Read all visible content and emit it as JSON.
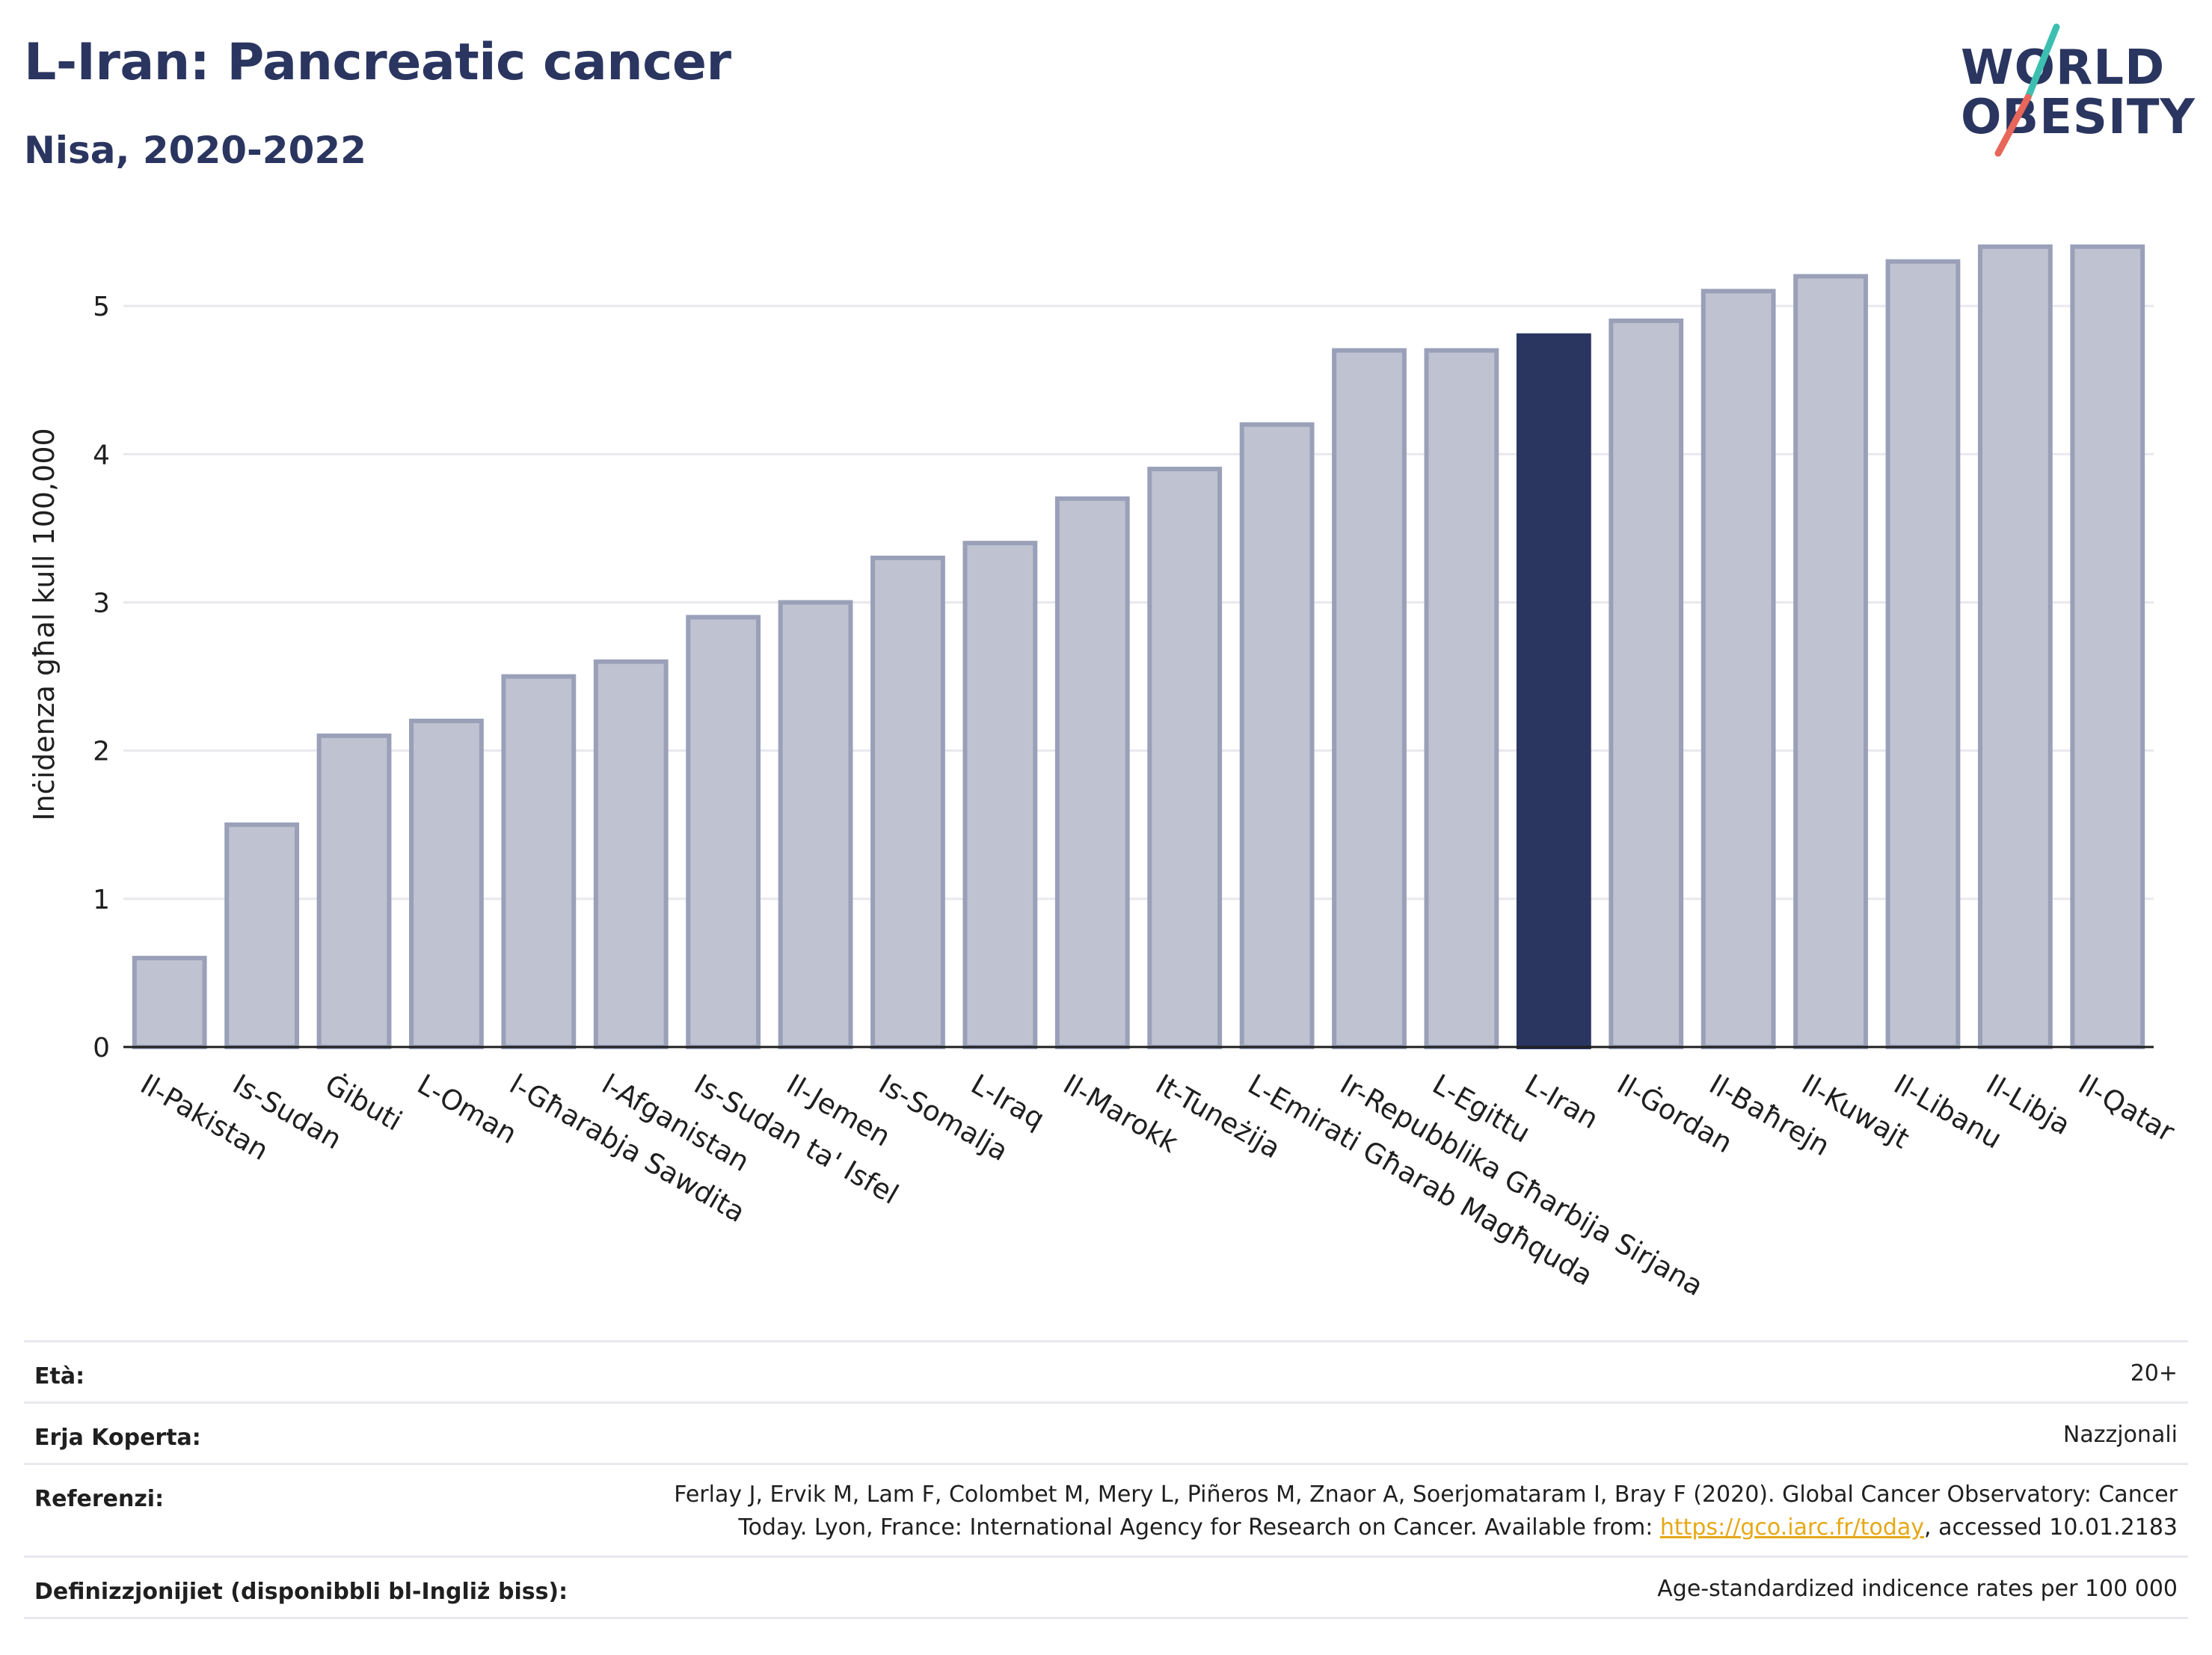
{
  "header": {
    "title": "L-Iran: Pancreatic cancer",
    "subtitle": "Nisa, 2020-2022"
  },
  "logo": {
    "line1": "WORLD",
    "line2": "OBESITY",
    "slash_colors": [
      "#3cbfb0",
      "#e8665a"
    ]
  },
  "chart_data": {
    "type": "bar",
    "title": "L-Iran: Pancreatic cancer",
    "subtitle": "Nisa, 2020-2022",
    "ylabel": "Inċidenza għal kull 100,000",
    "xlabel": "",
    "ylim": [
      0,
      5.5
    ],
    "yticks": [
      0,
      1,
      2,
      3,
      4,
      5
    ],
    "grid": true,
    "highlight": "L-Iran",
    "colors": {
      "bar": "#bfc2d0",
      "bar_border": "#9aa0b8",
      "highlight": "#2a3560",
      "grid": "#e8e8ee"
    },
    "categories": [
      "Il-Pakistan",
      "Is-Sudan",
      "Ġibuti",
      "L-Oman",
      "l-Għarabja Sawdita",
      "l-Afganistan",
      "Is-Sudan ta' Isfel",
      "Il-Jemen",
      "Is-Somalja",
      "L-Iraq",
      "Il-Marokk",
      "It-Tuneżija",
      "L-Emirati Għarab Magħquda",
      "Ir-Repubblika Għarbija Sirjana",
      "L-Egittu",
      "L-Iran",
      "Il-Ġordan",
      "Il-Baħrejn",
      "Il-Kuwajt",
      "Il-Libanu",
      "Il-Libja",
      "Il-Qatar"
    ],
    "values": [
      0.6,
      1.5,
      2.1,
      2.2,
      2.5,
      2.6,
      2.9,
      3.0,
      3.3,
      3.4,
      3.7,
      3.9,
      4.2,
      4.7,
      4.7,
      4.8,
      4.9,
      5.1,
      5.2,
      5.3,
      5.4,
      5.4
    ]
  },
  "meta": {
    "age_label": "Età:",
    "age_value": "20+",
    "area_label": "Erja Koperta:",
    "area_value": "Nazzjonali",
    "ref_label": "Referenzi:",
    "ref_line1": "Ferlay J, Ervik M, Lam F, Colombet M, Mery L, Piñeros M, Znaor A, Soerjomataram I, Bray F (2020). Global Cancer Observatory: Cancer",
    "ref_line2_pre": "Today. Lyon, France: International Agency for Research on Cancer. Available from: ",
    "ref_link": "https://gco.iarc.fr/today",
    "ref_line2_post": ", accessed 10.01.2183",
    "def_label": "Definizzjonijiet (disponibbli bl-Ingliż biss):",
    "def_value": "Age-standardized indicence rates per 100 000"
  }
}
